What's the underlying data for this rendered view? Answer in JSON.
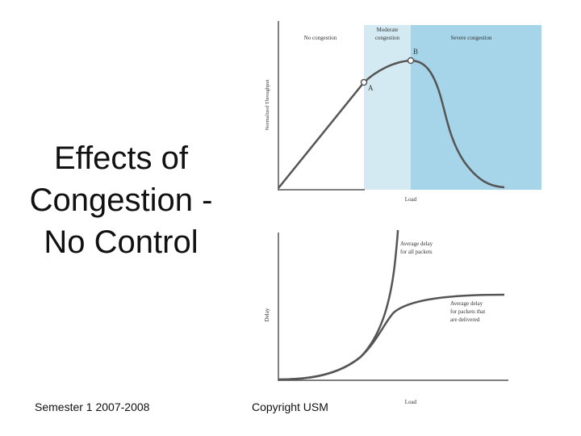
{
  "slide": {
    "title_lines": [
      "Effects of",
      "Congestion -",
      "No Control"
    ],
    "footer_left": "Semester 1 2007-2008",
    "footer_center": "Copyright USM"
  },
  "throughput_chart": {
    "y_label": "Normalized Throughput",
    "x_label": "Load",
    "regions": {
      "no_congestion": "No congestion",
      "moderate_line1": "Moderate",
      "moderate_line2": "congestion",
      "severe": "Severe congestion"
    },
    "point_a": "A",
    "point_b": "B",
    "colors": {
      "moderate": "#d3eaf2",
      "severe": "#a6d4e8",
      "curve": "#555555"
    }
  },
  "delay_chart": {
    "y_label": "Delay",
    "x_label": "Load",
    "curve_all_line1": "Average delay",
    "curve_all_line2": "for all packets",
    "curve_delivered_line1": "Average delay",
    "curve_delivered_line2": "for packets that",
    "curve_delivered_line3": "are delivered",
    "colors": {
      "curve": "#555555"
    }
  }
}
